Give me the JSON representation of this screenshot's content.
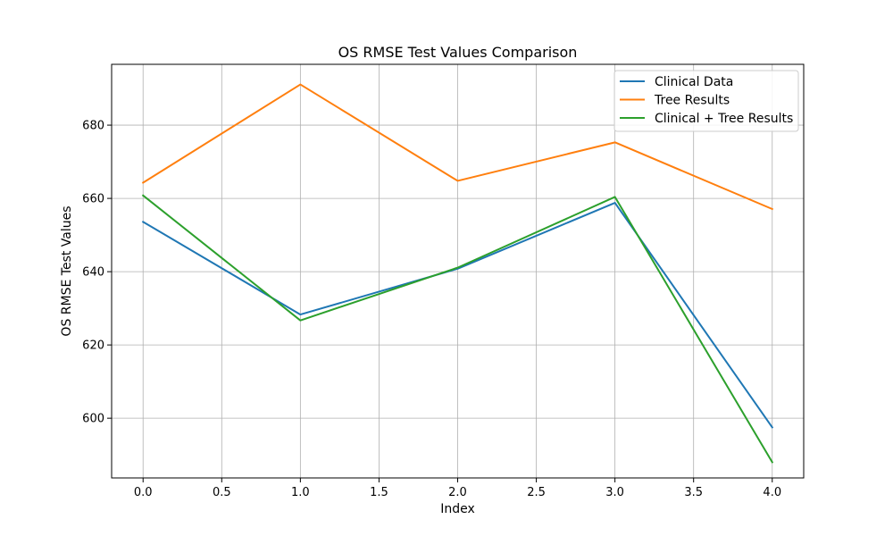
{
  "chart_data": {
    "type": "line",
    "title": "OS RMSE Test Values Comparison",
    "xlabel": "Index",
    "ylabel": "OS RMSE Test Values",
    "x": [
      0,
      1,
      2,
      3,
      4
    ],
    "xlim": [
      -0.2,
      4.2
    ],
    "ylim": [
      583.7,
      696.6
    ],
    "xticks": [
      "0.0",
      "0.5",
      "1.0",
      "1.5",
      "2.0",
      "2.5",
      "3.0",
      "3.5",
      "4.0"
    ],
    "yticks": [
      "600",
      "620",
      "640",
      "660",
      "680"
    ],
    "grid": true,
    "legend_position": "upper right",
    "series": [
      {
        "name": "Clinical Data",
        "color": "#1f77b4",
        "values": [
          653.6,
          628.3,
          640.8,
          658.8,
          597.5
        ]
      },
      {
        "name": "Tree Results",
        "color": "#ff7f0e",
        "values": [
          664.3,
          691.1,
          664.8,
          675.3,
          657.1
        ]
      },
      {
        "name": "Clinical + Tree Results",
        "color": "#2ca02c",
        "values": [
          660.8,
          626.7,
          641.1,
          660.4,
          588.0
        ]
      }
    ]
  }
}
